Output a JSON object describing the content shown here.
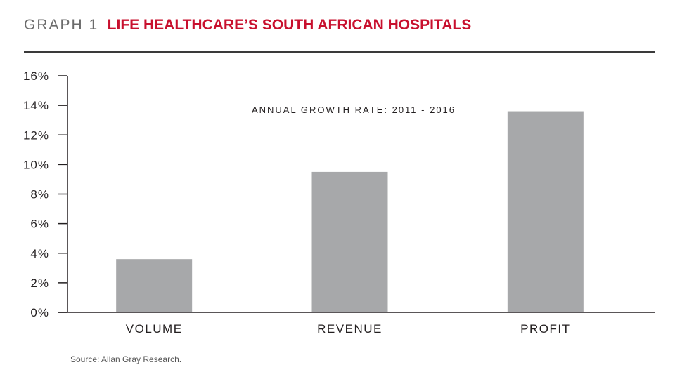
{
  "header": {
    "graph_number": "GRAPH 1",
    "title": "LIFE HEALTHCARE’S SOUTH AFRICAN HOSPITALS"
  },
  "source": "Source: Allan Gray Research.",
  "colors": {
    "title": "#c8102e",
    "bar": "#a7a8aa",
    "axis": "#231f20"
  },
  "chart_data": {
    "type": "bar",
    "title": "ANNUAL GROWTH RATE: 2011 - 2016",
    "categories": [
      "VOLUME",
      "REVENUE",
      "PROFIT"
    ],
    "values": [
      3.6,
      9.5,
      13.6
    ],
    "ylim": [
      0,
      16
    ],
    "yticks": [
      0,
      2,
      4,
      6,
      8,
      10,
      12,
      14,
      16
    ],
    "ytick_labels": [
      "0%",
      "2%",
      "4%",
      "6%",
      "8%",
      "10%",
      "12%",
      "14%",
      "16%"
    ],
    "grid": false,
    "legend": "none"
  }
}
